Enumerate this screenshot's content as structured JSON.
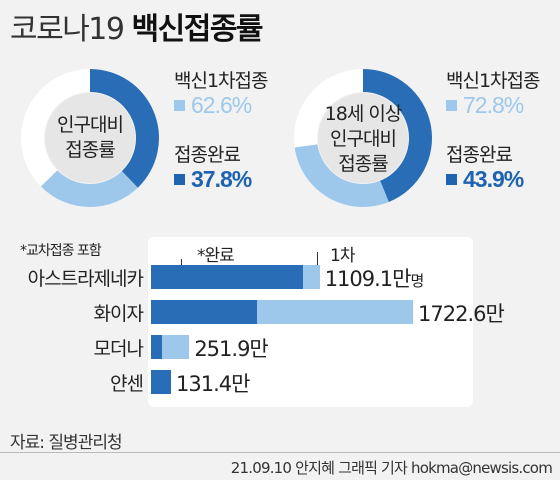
{
  "title_light": "코로나19",
  "title_bold": "백신접종률",
  "colors": {
    "light": "#9dc8ec",
    "dark": "#2a6db7",
    "remaining": "#ffffff"
  },
  "chart_data": [
    {
      "type": "pie",
      "center_label": [
        "인구대비",
        "접종률"
      ],
      "slices": [
        {
          "name": "접종완료",
          "value": 37.8,
          "display": "37.8%",
          "color": "#2a6db7"
        },
        {
          "name": "백신1차접종",
          "value": 62.6,
          "display": "62.6%",
          "color": "#9dc8ec"
        }
      ]
    },
    {
      "type": "pie",
      "center_label": [
        "18세 이상",
        "인구대비",
        "접종률"
      ],
      "slices": [
        {
          "name": "접종완료",
          "value": 43.9,
          "display": "43.9%",
          "color": "#2a6db7"
        },
        {
          "name": "백신1차접종",
          "value": 72.8,
          "display": "72.8%",
          "color": "#9dc8ec"
        }
      ]
    },
    {
      "type": "bar",
      "orientation": "horizontal",
      "note": "*교차접종 포함",
      "annotation_complete": "*완료",
      "annotation_first": "1차",
      "categories": [
        "아스트라제네카",
        "화이자",
        "모더나",
        "얀센"
      ],
      "series": [
        {
          "name": "*완료",
          "values": [
            1000,
            700,
            70,
            131.4
          ]
        },
        {
          "name": "1차",
          "values": [
            1109.1,
            1722.6,
            251.9,
            131.4
          ]
        }
      ],
      "labels": [
        "1109.1만",
        "1722.6만",
        "251.9만",
        "131.4만"
      ],
      "first_unit": "명",
      "xlim": [
        0,
        1722.6
      ]
    }
  ],
  "source": "자료: 질병관리청",
  "credit": "21.09.10 안지혜 그래픽 기자 hokma@newsis.com"
}
